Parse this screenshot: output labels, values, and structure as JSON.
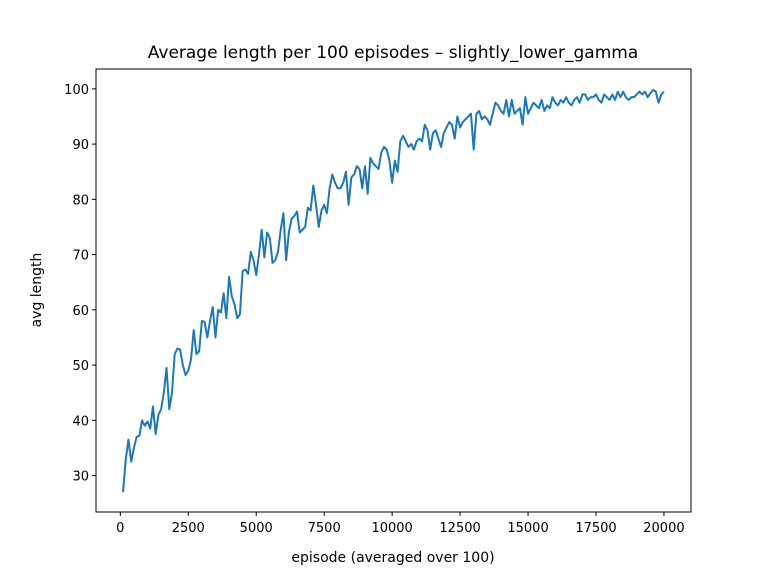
{
  "chart_data": {
    "type": "line",
    "title": "Average length per 100 episodes – slightly_lower_gamma",
    "xlabel": "episode (averaged over 100)",
    "ylabel": "avg length",
    "x": [
      100,
      200,
      300,
      400,
      500,
      600,
      700,
      800,
      900,
      1000,
      1100,
      1200,
      1300,
      1400,
      1500,
      1600,
      1700,
      1800,
      1900,
      2000,
      2100,
      2200,
      2300,
      2400,
      2500,
      2600,
      2700,
      2800,
      2900,
      3000,
      3100,
      3200,
      3300,
      3400,
      3500,
      3600,
      3700,
      3800,
      3900,
      4000,
      4100,
      4200,
      4300,
      4400,
      4500,
      4600,
      4700,
      4800,
      4900,
      5000,
      5100,
      5200,
      5300,
      5400,
      5500,
      5600,
      5700,
      5800,
      5900,
      6000,
      6100,
      6200,
      6300,
      6400,
      6500,
      6600,
      6700,
      6800,
      6900,
      7000,
      7100,
      7200,
      7300,
      7400,
      7500,
      7600,
      7700,
      7800,
      7900,
      8000,
      8100,
      8200,
      8300,
      8400,
      8500,
      8600,
      8700,
      8800,
      8900,
      9000,
      9100,
      9200,
      9300,
      9400,
      9500,
      9600,
      9700,
      9800,
      9900,
      10000,
      10100,
      10200,
      10300,
      10400,
      10500,
      10600,
      10700,
      10800,
      10900,
      11000,
      11100,
      11200,
      11300,
      11400,
      11500,
      11600,
      11700,
      11800,
      11900,
      12000,
      12100,
      12200,
      12300,
      12400,
      12500,
      12600,
      12700,
      12800,
      12900,
      13000,
      13100,
      13200,
      13300,
      13400,
      13500,
      13600,
      13700,
      13800,
      13900,
      14000,
      14100,
      14200,
      14300,
      14400,
      14500,
      14600,
      14700,
      14800,
      14900,
      15000,
      15100,
      15200,
      15300,
      15400,
      15500,
      15600,
      15700,
      15800,
      15900,
      16000,
      16100,
      16200,
      16300,
      16400,
      16500,
      16600,
      16700,
      16800,
      16900,
      17000,
      17100,
      17200,
      17300,
      17400,
      17500,
      17600,
      17700,
      17800,
      17900,
      18000,
      18100,
      18200,
      18300,
      18400,
      18500,
      18600,
      18700,
      18800,
      18900,
      19000,
      19100,
      19200,
      19300,
      19400,
      19500,
      19600,
      19700,
      19800,
      19900,
      20000
    ],
    "series": [
      {
        "name": "avg length",
        "color": "#1f77b4",
        "values": [
          27,
          33,
          36.5,
          32.5,
          35,
          37,
          37.2,
          40,
          39,
          39.8,
          38.5,
          42.5,
          37.5,
          41,
          42,
          45,
          49.5,
          42,
          45,
          52,
          53,
          52.8,
          50,
          48.2,
          49,
          51,
          56.3,
          52,
          52.5,
          58,
          57.8,
          55,
          58,
          60.5,
          55,
          60,
          59.5,
          63,
          58.5,
          66,
          62.5,
          61,
          58.5,
          59.2,
          67,
          67.3,
          66.5,
          70.5,
          69,
          66.3,
          70,
          74.5,
          69.5,
          74,
          73,
          68.5,
          69,
          70.5,
          74.5,
          77.5,
          69,
          74,
          76.5,
          77,
          77.8,
          74,
          74.5,
          75,
          78.5,
          78,
          82.5,
          79,
          75,
          78,
          79,
          77.5,
          82,
          84.5,
          83,
          82,
          82,
          83,
          85,
          79,
          84,
          84.5,
          86,
          85.5,
          82,
          86,
          81,
          87.5,
          86.5,
          86,
          85.5,
          88.5,
          89.5,
          89,
          87,
          83,
          87,
          85,
          90.5,
          91.5,
          90.5,
          89.5,
          90,
          89,
          90.5,
          91,
          90.5,
          93.5,
          92.5,
          89,
          92,
          92.5,
          91,
          89.5,
          92,
          93,
          94,
          93.5,
          91,
          95,
          93,
          94,
          94.5,
          95,
          95.5,
          89,
          95.5,
          96,
          94.5,
          95,
          94.5,
          93.5,
          95.5,
          97.5,
          97,
          96,
          95.5,
          98,
          95,
          98,
          95.5,
          96,
          96.5,
          93.5,
          98.5,
          95.5,
          96.5,
          97.5,
          97,
          96.5,
          98,
          96,
          97,
          96.5,
          98.5,
          97.5,
          97,
          98,
          97.5,
          98.5,
          97.5,
          97,
          98,
          98.5,
          97.5,
          99,
          99,
          98,
          98.5,
          98.5,
          99,
          98,
          97.5,
          99,
          98.5,
          98,
          99,
          98,
          99.5,
          98.5,
          99.5,
          98.5,
          98,
          98.5,
          98.5,
          99,
          99.5,
          99,
          99.5,
          98.5,
          99.2,
          99.8,
          99.5,
          97.5,
          99,
          99.5
        ]
      }
    ],
    "xlim": [
      -895,
      20995
    ],
    "ylim": [
      23.4,
      103.6
    ],
    "xticks": [
      0,
      2500,
      5000,
      7500,
      10000,
      12500,
      15000,
      17500,
      20000
    ],
    "yticks": [
      30,
      40,
      50,
      60,
      70,
      80,
      90,
      100
    ]
  }
}
